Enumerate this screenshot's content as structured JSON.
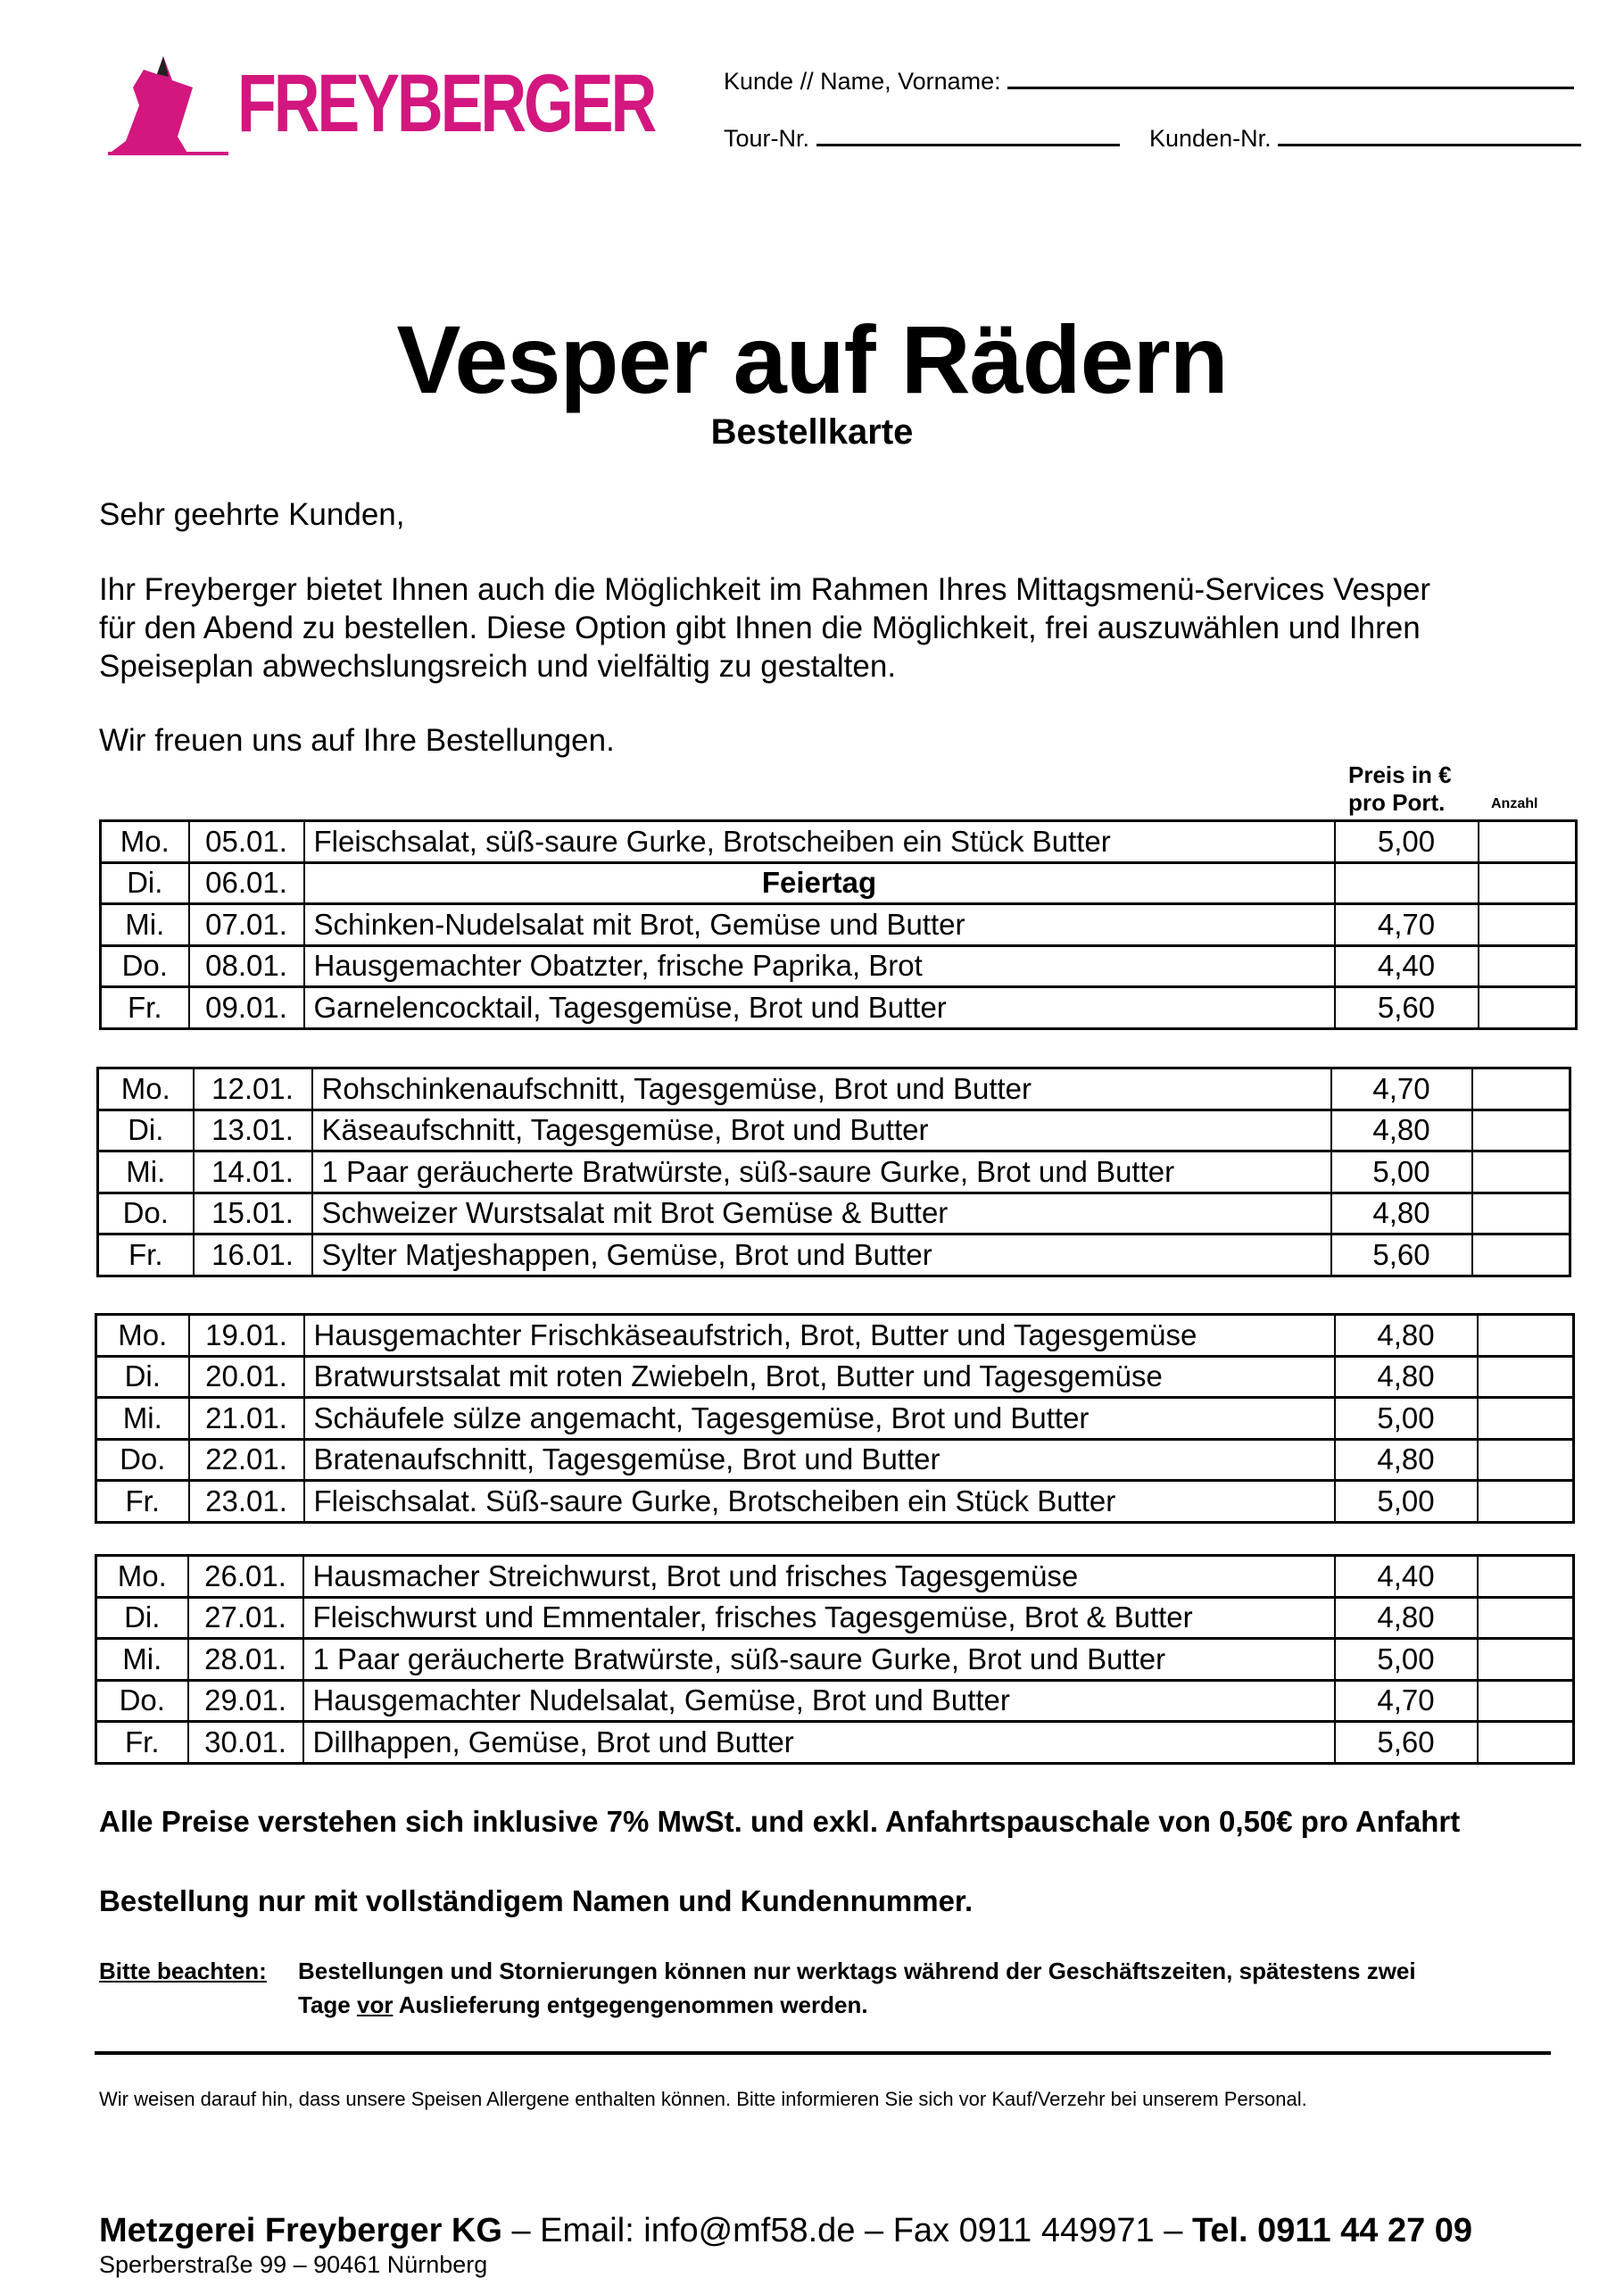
{
  "brand": {
    "name": "FREYBERGER",
    "color": "#d3177f"
  },
  "form": {
    "customer_label": "Kunde // Name, Vorname:",
    "tour_label": "Tour-Nr.",
    "customer_no_label": "Kunden-Nr."
  },
  "title": "Vesper auf Rädern",
  "subtitle": "Bestellkarte",
  "greeting": "Sehr geehrte Kunden,",
  "intro": [
    "Ihr Freyberger bietet Ihnen auch die Möglichkeit im Rahmen Ihres Mittagsmenü-Services Vesper",
    "für den Abend zu bestellen. Diese Option gibt Ihnen die Möglichkeit, frei auszuwählen und Ihren",
    "Speiseplan abwechslungsreich und vielfältig zu gestalten."
  ],
  "closing": "Wir freuen uns auf Ihre Bestellungen.",
  "headers": {
    "price_1": "Preis in €",
    "price_2": "pro Port.",
    "qty": "Anzahl"
  },
  "weeks": [
    [
      [
        "Mo.",
        "05.01.",
        "Fleischsalat, süß-saure Gurke, Brotscheiben ein Stück Butter",
        "5,00"
      ],
      [
        "Di.",
        "06.01.",
        "Feiertag",
        ""
      ],
      [
        "Mi.",
        "07.01.",
        "Schinken-Nudelsalat mit Brot, Gemüse und Butter",
        "4,70"
      ],
      [
        "Do.",
        "08.01.",
        "Hausgemachter Obatzter, frische Paprika, Brot",
        "4,40"
      ],
      [
        "Fr.",
        "09.01.",
        "Garnelencocktail, Tagesgemüse, Brot und Butter",
        "5,60"
      ]
    ],
    [
      [
        "Mo.",
        "12.01.",
        "Rohschinkenaufschnitt, Tagesgemüse, Brot und Butter",
        "4,70"
      ],
      [
        "Di.",
        "13.01.",
        "Käseaufschnitt, Tagesgemüse, Brot und Butter",
        "4,80"
      ],
      [
        "Mi.",
        "14.01.",
        "1 Paar geräucherte Bratwürste, süß-saure Gurke, Brot und Butter",
        "5,00"
      ],
      [
        "Do.",
        "15.01.",
        "Schweizer Wurstsalat mit Brot Gemüse & Butter",
        "4,80"
      ],
      [
        "Fr.",
        "16.01.",
        "Sylter Matjeshappen, Gemüse, Brot und Butter",
        "5,60"
      ]
    ],
    [
      [
        "Mo.",
        "19.01.",
        "Hausgemachter Frischkäseaufstrich, Brot, Butter und Tagesgemüse",
        "4,80"
      ],
      [
        "Di.",
        "20.01.",
        "Bratwurstsalat mit roten Zwiebeln, Brot, Butter und Tagesgemüse",
        "4,80"
      ],
      [
        "Mi.",
        "21.01.",
        "Schäufele sülze angemacht, Tagesgemüse, Brot und Butter",
        "5,00"
      ],
      [
        "Do.",
        "22.01.",
        "Bratenaufschnitt, Tagesgemüse, Brot und Butter",
        "4,80"
      ],
      [
        "Fr.",
        "23.01.",
        "Fleischsalat. Süß-saure Gurke, Brotscheiben ein Stück Butter",
        "5,00"
      ]
    ],
    [
      [
        "Mo.",
        "26.01.",
        "Hausmacher Streichwurst, Brot und frisches Tagesgemüse",
        "4,40"
      ],
      [
        "Di.",
        "27.01.",
        "Fleischwurst und Emmentaler, frisches Tagesgemüse, Brot & Butter",
        "4,80"
      ],
      [
        "Mi.",
        "28.01.",
        "1 Paar geräucherte Bratwürste, süß-saure Gurke, Brot und Butter",
        "5,00"
      ],
      [
        "Do.",
        "29.01.",
        "Hausgemachter Nudelsalat, Gemüse, Brot und Butter",
        "4,70"
      ],
      [
        "Fr.",
        "30.01.",
        "Dillhappen, Gemüse, Brot und Butter",
        "5,60"
      ]
    ]
  ],
  "notes": {
    "prices": "Alle Preise verstehen sich inklusive 7% MwSt. und exkl. Anfahrtspauschale von 0,50€ pro Anfahrt",
    "order": "Bestellung nur mit vollständigem Namen und Kundennummer.",
    "attention_label": "Bitte beachten:",
    "attention_1": "Bestellungen und Stornierungen können nur werktags während der Geschäftszeiten, spätestens zwei",
    "attention_2a": "Tage ",
    "attention_2b": "vor",
    "attention_2c": " Auslieferung entgegengenommen werden.",
    "allergens": "Wir weisen darauf hin, dass unsere Speisen Allergene enthalten können. Bitte informieren Sie sich vor Kauf/Verzehr bei unserem Personal."
  },
  "footer": {
    "company": "Metzgerei Freyberger KG",
    "email": " – Email: info@mf58.de – Fax 0911 449971 – ",
    "tel": "Tel. 0911 44 27 09",
    "address": "Sperberstraße 99 – 90461 Nürnberg"
  }
}
